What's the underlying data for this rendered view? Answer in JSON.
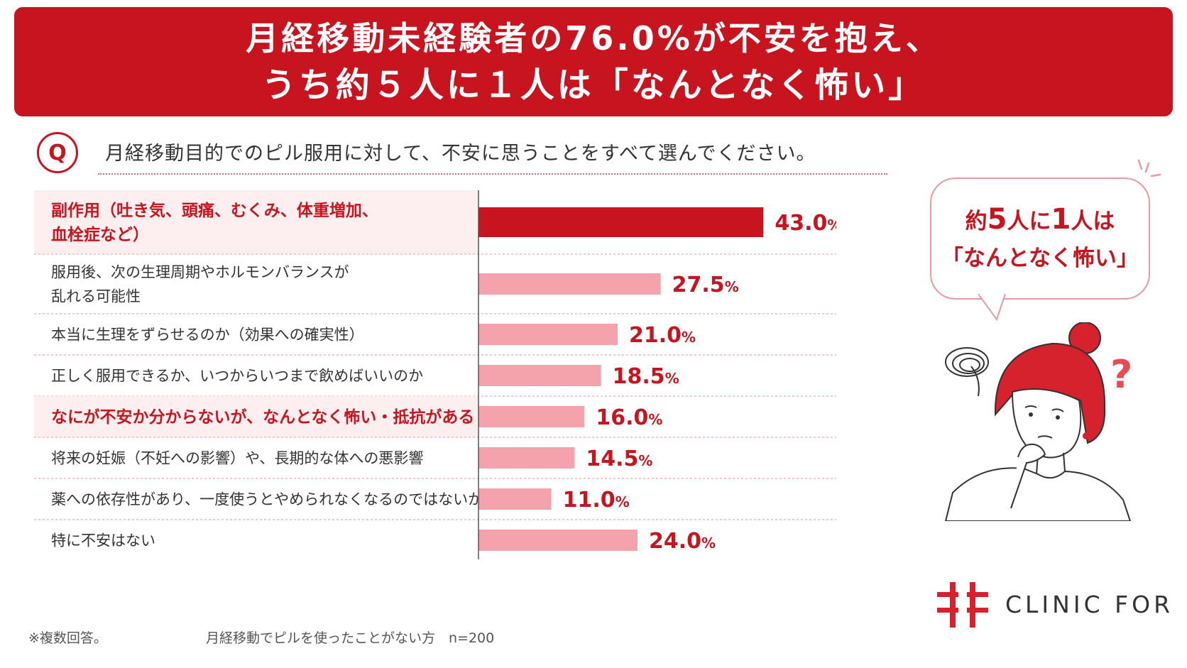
{
  "headline": {
    "line1": "月経移動未経験者の76.0%が不安を抱え、",
    "line2": "うち約５人に１人は「なんとなく怖い」"
  },
  "question": {
    "badge": "Q",
    "text": "月経移動目的でのピル服用に対して、不安に思うことをすべて選んでください。"
  },
  "chart_data": {
    "type": "bar",
    "orientation": "horizontal",
    "xlim": [
      0,
      45
    ],
    "unit": "%",
    "categories": [
      "副作用（吐き気、頭痛、むくみ、体重増加、|血栓症など）",
      "服用後、次の生理周期やホルモンバランスが|乱れる可能性",
      "本当に生理をずらせるのか（効果への確実性）",
      "正しく服用できるか、いつからいつまで飲めばいいのか",
      "なにが不安か分からないが、なんとなく怖い・抵抗がある",
      "将来の妊娠（不妊への影響）や、長期的な体への悪影響",
      "薬への依存性があり、一度使うとやめられなくなるのではないか",
      "特に不安はない"
    ],
    "values": [
      43.0,
      27.5,
      21.0,
      18.5,
      16.0,
      14.5,
      11.0,
      24.0
    ],
    "value_labels": [
      "43.0",
      "27.5",
      "21.0",
      "18.5",
      "16.0",
      "14.5",
      "11.0",
      "24.0"
    ],
    "highlighted": [
      true,
      false,
      false,
      false,
      true,
      false,
      false,
      false
    ],
    "colors": {
      "primary": "#c8141e",
      "bar_light": "#f4a3ad",
      "highlight_bg": "#fdeff0",
      "label_accent": "#c8141e",
      "label_normal": "#333333"
    }
  },
  "callout": {
    "pre": "約",
    "n1": "5",
    "mid": "人に",
    "n2": "1",
    "post": "人は",
    "line2": "「なんとなく怖い」"
  },
  "footnote": "※複数回答。",
  "sample": "月経移動でピルを使ったことがない方　n=200",
  "logo": {
    "text": "CLINIC FOR",
    "icon": "clinic-cross-logo-icon"
  },
  "illustration": {
    "icon": "worried-woman-icon"
  }
}
